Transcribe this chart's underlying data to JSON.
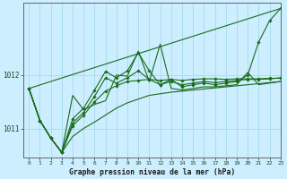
{
  "title": "Graphe pression niveau de la mer (hPa)",
  "background_color": "#cceeff",
  "grid_color": "#aaddee",
  "line_color": "#1a6b1a",
  "marker_color": "#1a6b1a",
  "xlim": [
    -0.5,
    23
  ],
  "ylim": [
    1010.45,
    1013.35
  ],
  "yticks": [
    1011,
    1012
  ],
  "xticks": [
    0,
    1,
    2,
    3,
    4,
    5,
    6,
    7,
    8,
    9,
    10,
    11,
    12,
    13,
    14,
    15,
    16,
    17,
    18,
    19,
    20,
    21,
    22,
    23
  ],
  "series_no_marker": [
    [
      1011.75,
      1011.15,
      1010.82,
      1010.55,
      1010.85,
      1011.0,
      1011.12,
      1011.25,
      1011.38,
      1011.48,
      1011.55,
      1011.62,
      1011.65,
      1011.68,
      1011.7,
      1011.72,
      1011.74,
      1011.76,
      1011.78,
      1011.8,
      1011.82,
      1011.84,
      1011.86,
      1011.88
    ]
  ],
  "series_with_markers": [
    {
      "y": [
        1011.75,
        1011.15,
        1010.82,
        1010.55,
        1011.05,
        1011.25,
        1011.5,
        1011.7,
        1011.8,
        1011.88,
        1011.9,
        1011.92,
        1011.9,
        1011.92,
        1011.9,
        1011.92,
        1011.93,
        1011.93,
        1011.92,
        1011.93,
        1011.93,
        1011.93,
        1011.94,
        1011.94
      ],
      "has_marker": true
    },
    {
      "y": [
        1011.75,
        1011.15,
        1010.82,
        1010.55,
        1011.1,
        1011.3,
        1011.6,
        1011.95,
        1011.85,
        1011.95,
        1012.08,
        1011.92,
        1011.82,
        1011.88,
        1011.82,
        1011.85,
        1011.88,
        1011.86,
        1011.88,
        1011.9,
        1011.92,
        1011.92,
        1011.93,
        1011.95
      ],
      "has_marker": true
    },
    {
      "y": [
        1011.75,
        1011.15,
        1010.82,
        1010.55,
        1011.18,
        1011.38,
        1011.72,
        1012.07,
        1011.95,
        1012.08,
        1012.42,
        1012.08,
        1011.82,
        1011.92,
        1011.78,
        1011.82,
        1011.85,
        1011.82,
        1011.85,
        1011.88,
        1012.0,
        1012.62,
        1013.02,
        1013.25
      ],
      "has_marker": true
    },
    {
      "y": [
        1011.75,
        1011.15,
        1010.82,
        1010.55,
        1011.62,
        1011.35,
        1011.45,
        1011.52,
        1012.0,
        1011.98,
        1012.45,
        1011.88,
        1012.58,
        1011.75,
        1011.72,
        1011.75,
        1011.78,
        1011.78,
        1011.8,
        1011.82,
        1012.05,
        1011.82,
        1011.85,
        1011.88
      ],
      "has_marker": false
    }
  ],
  "straight_line": {
    "x": [
      0,
      23
    ],
    "y": [
      1011.75,
      1013.25
    ]
  }
}
